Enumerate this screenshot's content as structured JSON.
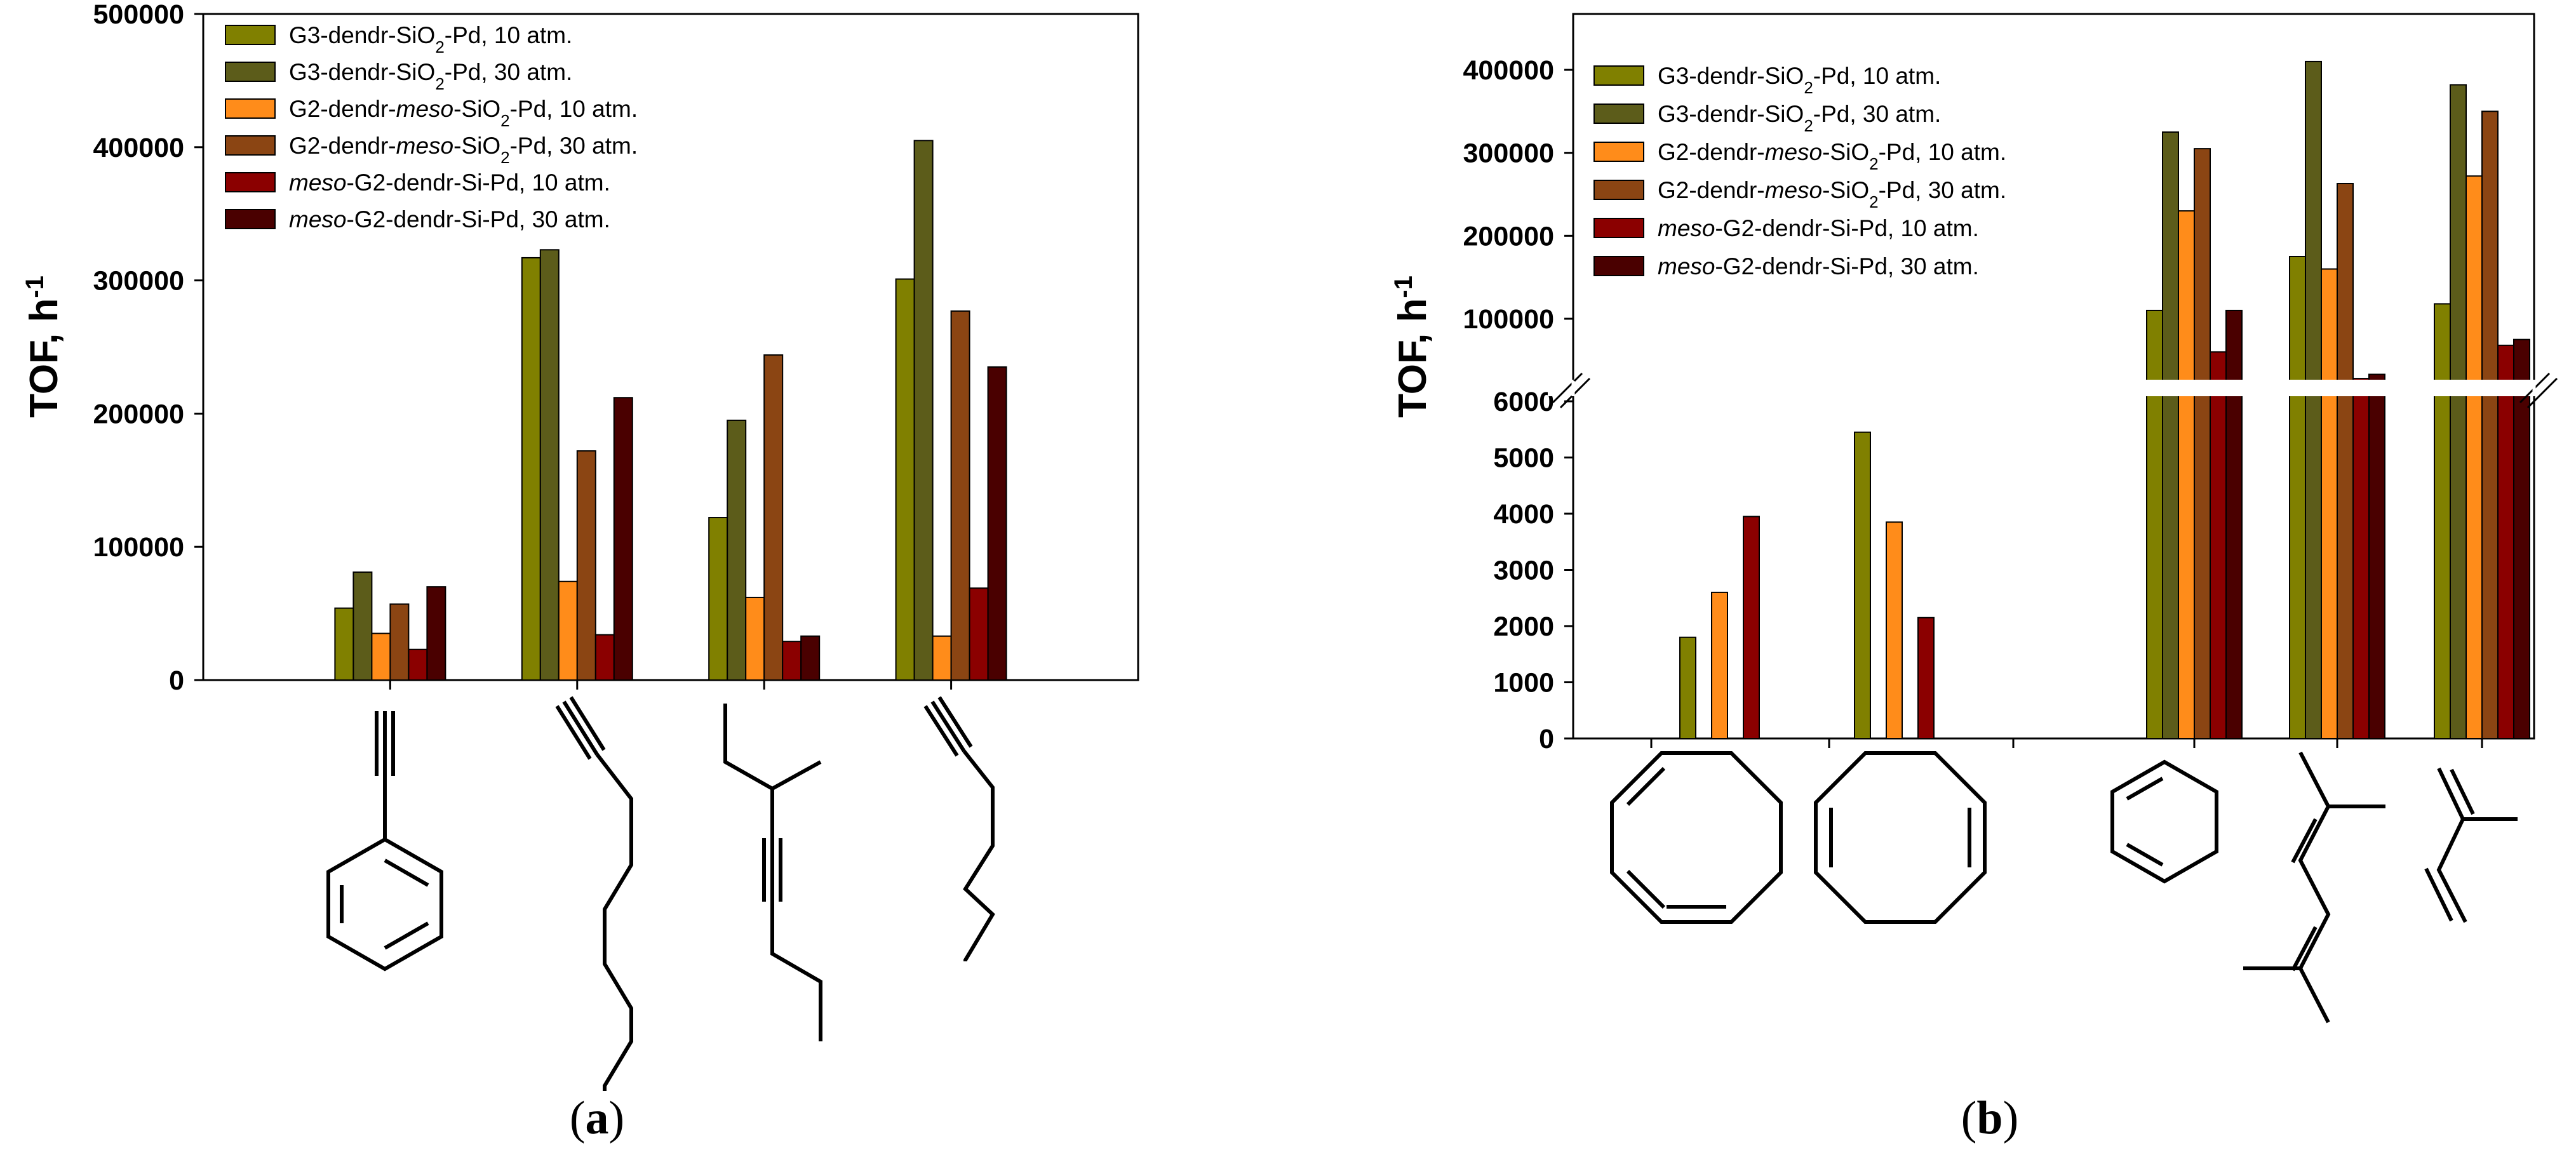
{
  "chart_data": [
    {
      "panel": "a",
      "type": "bar",
      "ylabel": "TOF, h",
      "ylabel_sup": "-1",
      "ylim": [
        0,
        500000
      ],
      "yticks": [
        "0",
        "100000",
        "200000",
        "300000",
        "400000",
        "500000"
      ],
      "categories": [
        "phenylacetylene",
        "1-octyne",
        "4-octyne",
        "1-hexyne"
      ],
      "series": [
        {
          "name": "G3-dendr-SiO₂-Pd, 10 atm.",
          "color": "#808000",
          "values": [
            54000,
            317000,
            122000,
            301000
          ]
        },
        {
          "name": "G3-dendr-SiO₂-Pd, 30 atm.",
          "color": "#5c5c1a",
          "values": [
            81000,
            323000,
            195000,
            405000
          ]
        },
        {
          "name": "G2-dendr-meso-SiO₂-Pd, 10 atm.",
          "color": "#ff8c1a",
          "values": [
            35000,
            74000,
            62000,
            33000
          ]
        },
        {
          "name": "G2-dendr-meso-SiO₂-Pd, 30 atm.",
          "color": "#8b4513",
          "values": [
            57000,
            172000,
            244000,
            277000
          ]
        },
        {
          "name": "meso-G2-dendr-Si-Pd, 10 atm.",
          "color": "#8b0000",
          "values": [
            23000,
            34000,
            29000,
            69000
          ]
        },
        {
          "name": "meso-G2-dendr-Si-Pd, 30 atm.",
          "color": "#4a0000",
          "values": [
            70000,
            212000,
            33000,
            235000
          ]
        }
      ],
      "legend_parts": [
        [
          [
            "G3-dendr-SiO",
            false,
            false
          ],
          [
            "2",
            false,
            true
          ],
          [
            "-Pd, 10 atm.",
            false,
            false
          ]
        ],
        [
          [
            "G3-dendr-SiO",
            false,
            false
          ],
          [
            "2",
            false,
            true
          ],
          [
            "-Pd, 30 atm.",
            false,
            false
          ]
        ],
        [
          [
            "G2-dendr-",
            false,
            false
          ],
          [
            "meso",
            true,
            false
          ],
          [
            "-SiO",
            false,
            false
          ],
          [
            "2",
            false,
            true
          ],
          [
            "-Pd, 10 atm.",
            false,
            false
          ]
        ],
        [
          [
            "G2-dendr-",
            false,
            false
          ],
          [
            "meso",
            true,
            false
          ],
          [
            "-SiO",
            false,
            false
          ],
          [
            "2",
            false,
            true
          ],
          [
            "-Pd, 30 atm.",
            false,
            false
          ]
        ],
        [
          [
            "meso",
            true,
            false
          ],
          [
            "-G2-dendr-Si-Pd, 10 atm.",
            false,
            false
          ]
        ],
        [
          [
            "meso",
            true,
            false
          ],
          [
            "-G2-dendr-Si-Pd, 30 atm.",
            false,
            false
          ]
        ]
      ],
      "legend_position": "top-left",
      "panel_label": "a"
    },
    {
      "panel": "b",
      "type": "bar",
      "ylabel": "TOF, h",
      "ylabel_sup": "-1",
      "axis_break": true,
      "lower_ylim": [
        0,
        6000
      ],
      "lower_yticks": [
        "0",
        "1000",
        "2000",
        "3000",
        "4000",
        "5000",
        "6000"
      ],
      "upper_yticks": [
        "100000",
        "200000",
        "300000",
        "400000"
      ],
      "categories": [
        "1,3-cyclooctadiene",
        "1,5-cyclooctadiene",
        "1,3-cyclohexadiene",
        "2,6-dimethyl-2,4,6-octatriene",
        "isoprene"
      ],
      "series": [
        {
          "name": "G3-dendr-SiO₂-Pd, 10 atm.",
          "color": "#808000",
          "values": [
            1800,
            5450,
            110000,
            175000,
            118000
          ]
        },
        {
          "name": "G3-dendr-SiO₂-Pd, 30 atm.",
          "color": "#5c5c1a",
          "values": [
            null,
            null,
            325000,
            410000,
            382000
          ]
        },
        {
          "name": "G2-dendr-meso-SiO₂-Pd, 10 atm.",
          "color": "#ff8c1a",
          "values": [
            2600,
            3850,
            230000,
            160000,
            272000
          ]
        },
        {
          "name": "G2-dendr-meso-SiO₂-Pd, 30 atm.",
          "color": "#8b4513",
          "values": [
            null,
            null,
            305000,
            263000,
            350000
          ]
        },
        {
          "name": "meso-G2-dendr-Si-Pd, 10 atm.",
          "color": "#8b0000",
          "values": [
            3950,
            2150,
            60000,
            28000,
            68000
          ]
        },
        {
          "name": "meso-G2-dendr-Si-Pd, 30 atm.",
          "color": "#4a0000",
          "values": [
            null,
            null,
            110000,
            33000,
            75000
          ]
        }
      ],
      "legend_parts": [
        [
          [
            "G3-dendr-SiO",
            false,
            false
          ],
          [
            "2",
            false,
            true
          ],
          [
            "-Pd, 10 atm.",
            false,
            false
          ]
        ],
        [
          [
            "G3-dendr-SiO",
            false,
            false
          ],
          [
            "2",
            false,
            true
          ],
          [
            "-Pd, 30 atm.",
            false,
            false
          ]
        ],
        [
          [
            "G2-dendr-",
            false,
            false
          ],
          [
            "meso",
            true,
            false
          ],
          [
            "-SiO",
            false,
            false
          ],
          [
            "2",
            false,
            true
          ],
          [
            "-Pd, 10 atm.",
            false,
            false
          ]
        ],
        [
          [
            "G2-dendr-",
            false,
            false
          ],
          [
            "meso",
            true,
            false
          ],
          [
            "-SiO",
            false,
            false
          ],
          [
            "2",
            false,
            true
          ],
          [
            "-Pd, 30 atm.",
            false,
            false
          ]
        ],
        [
          [
            "meso",
            true,
            false
          ],
          [
            "-G2-dendr-Si-Pd, 10 atm.",
            false,
            false
          ]
        ],
        [
          [
            "meso",
            true,
            false
          ],
          [
            "-G2-dendr-Si-Pd, 30 atm.",
            false,
            false
          ]
        ]
      ],
      "legend_position": "top-left",
      "panel_label": "b"
    }
  ]
}
